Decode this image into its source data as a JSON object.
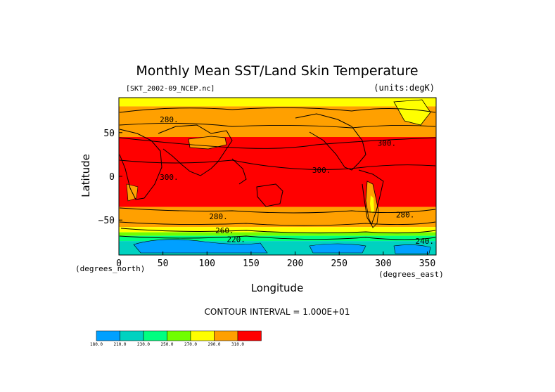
{
  "chart_data": {
    "type": "heatmap",
    "title": "Monthly Mean SST/Land Skin Temperature",
    "file_label": "[SKT_2002-09_NCEP.nc]",
    "units_label": "(units:degK)",
    "xlabel": "Longitude",
    "ylabel": "Latitude",
    "x_units": "(degrees_north)",
    "x_units_right": "(degrees_east)",
    "xlim": [
      0,
      360
    ],
    "ylim": [
      -90,
      90
    ],
    "x_ticks": [
      "0",
      "50",
      "100",
      "150",
      "200",
      "250",
      "300",
      "350"
    ],
    "x_tick_values": [
      0,
      50,
      100,
      150,
      200,
      250,
      300,
      350
    ],
    "y_ticks": [
      "50",
      "0",
      "−50"
    ],
    "y_tick_values": [
      50,
      0,
      -50
    ],
    "contour_interval": "CONTOUR INTERVAL = 1.000E+01",
    "contour_labels": [
      {
        "text": "280.",
        "lon": 57,
        "lat": 62
      },
      {
        "text": "300.",
        "lon": 57,
        "lat": -4
      },
      {
        "text": "300.",
        "lon": 230,
        "lat": 4
      },
      {
        "text": "300.",
        "lon": 304,
        "lat": 35
      },
      {
        "text": "280.",
        "lon": 113,
        "lat": -49
      },
      {
        "text": "280.",
        "lon": 325,
        "lat": -47
      },
      {
        "text": "260.",
        "lon": 120,
        "lat": -65
      },
      {
        "text": "220.",
        "lon": 133,
        "lat": -75
      },
      {
        "text": "240.",
        "lon": 347,
        "lat": -77
      }
    ],
    "colorbar": {
      "colors": [
        "#00a0ff",
        "#00d2c0",
        "#00ff80",
        "#70ff00",
        "#ffff00",
        "#ffa000",
        "#ff0000"
      ],
      "labels": [
        "180.0",
        "210.0",
        "230.0",
        "250.0",
        "270.0",
        "290.0",
        "310.0"
      ]
    },
    "latitude_bands": [
      {
        "lat_top": 90,
        "lat_bottom": 80,
        "color": "#ffff00"
      },
      {
        "lat_top": 80,
        "lat_bottom": 45,
        "color": "#ffa000"
      },
      {
        "lat_top": 45,
        "lat_bottom": -35,
        "color": "#ff0000"
      },
      {
        "lat_top": -35,
        "lat_bottom": -58,
        "color": "#ffa000"
      },
      {
        "lat_top": -58,
        "lat_bottom": -64,
        "color": "#ffff00"
      },
      {
        "lat_top": -64,
        "lat_bottom": -68,
        "color": "#70ff00"
      },
      {
        "lat_top": -68,
        "lat_bottom": -74,
        "color": "#00ff80"
      },
      {
        "lat_top": -74,
        "lat_bottom": -90,
        "color": "#00d2c0"
      }
    ]
  }
}
